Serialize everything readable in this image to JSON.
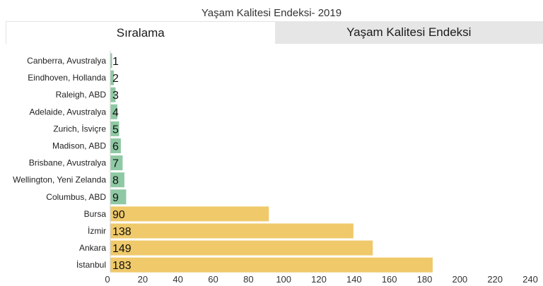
{
  "chart_data": {
    "type": "bar",
    "orientation": "horizontal",
    "title": "Yaşam Kalitesi Endeksi- 2019",
    "categories": [
      "Canberra, Avustralya",
      "Eindhoven, Hollanda",
      "Raleigh, ABD",
      "Adelaide, Avustralya",
      "Zurich, İsviçre",
      "Madison, ABD",
      "Brisbane, Avustralya",
      "Wellington, Yeni Zelanda",
      "Columbus, ABD",
      "Bursa",
      "İzmir",
      "Ankara",
      "İstanbul"
    ],
    "values": [
      1,
      2,
      3,
      4,
      5,
      6,
      7,
      8,
      9,
      90,
      138,
      149,
      183
    ],
    "bar_lengths": [
      1,
      2,
      3,
      4,
      5,
      6,
      7,
      8,
      9,
      90,
      138,
      149,
      183
    ],
    "colors": [
      "#8fc9a4",
      "#8fc9a4",
      "#8fc9a4",
      "#8fc9a4",
      "#8fc9a4",
      "#8fc9a4",
      "#8fc9a4",
      "#8fc9a4",
      "#8fc9a4",
      "#efc96a",
      "#efc96a",
      "#efc96a",
      "#efc96a"
    ],
    "xlim": [
      0,
      240
    ],
    "xticks": [
      "0",
      "20",
      "40",
      "60",
      "80",
      "100",
      "120",
      "140",
      "160",
      "180",
      "200",
      "220",
      "240"
    ],
    "grid": false,
    "legend": "none"
  },
  "tabs": {
    "ranking_label": "Sıralama",
    "index_label": "Yaşam Kalitesi Endeksi"
  }
}
